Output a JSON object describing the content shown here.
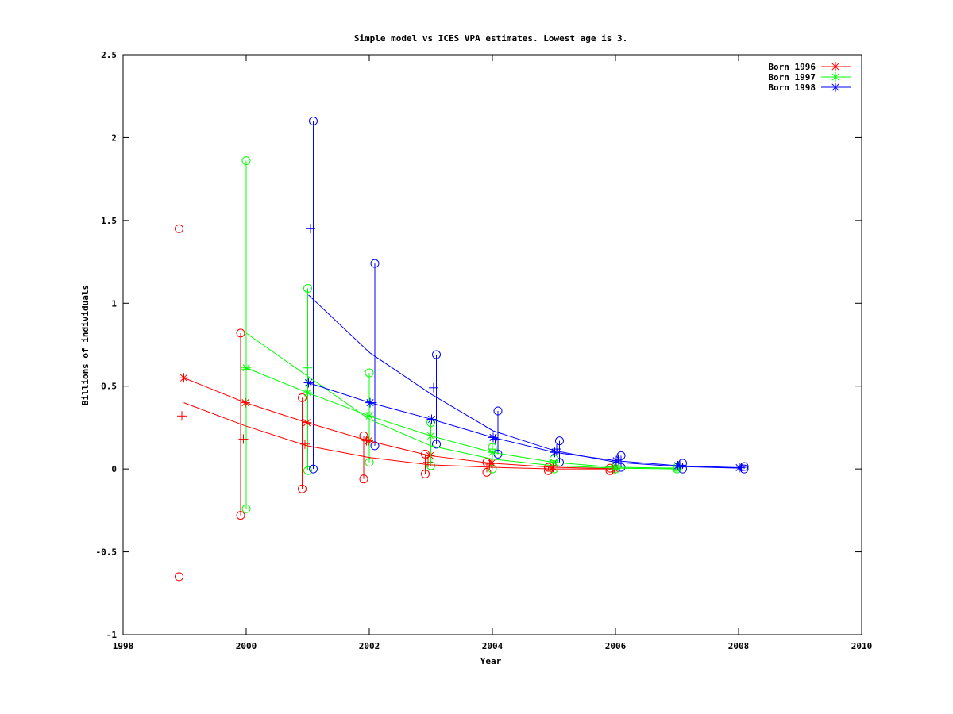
{
  "chart_data": {
    "type": "line",
    "title": "Simple model vs ICES VPA estimates. Lowest age is 3.",
    "xlabel": "Year",
    "ylabel": "Billions of individuals",
    "xlim": [
      1998,
      2010
    ],
    "ylim": [
      -1,
      2.5
    ],
    "xticks": [
      "1998",
      "2000",
      "2002",
      "2004",
      "2006",
      "2008",
      "2010"
    ],
    "yticks": [
      "-1",
      "-0.5",
      "0",
      "0.5",
      "1",
      "1.5",
      "2",
      "2.5"
    ],
    "grid": false,
    "legend_position": "top-right",
    "series": [
      {
        "name": "Born 1996",
        "color": "#ff0000",
        "vpa": [
          {
            "x": 1999,
            "y": 0.55
          },
          {
            "x": 2000,
            "y": 0.4
          },
          {
            "x": 2001,
            "y": 0.28
          },
          {
            "x": 2002,
            "y": 0.17
          },
          {
            "x": 2003,
            "y": 0.08
          },
          {
            "x": 2004,
            "y": 0.035
          },
          {
            "x": 2005,
            "y": 0.01
          },
          {
            "x": 2006,
            "y": 0.002
          }
        ],
        "model": [
          {
            "x": 1999,
            "y": 0.4
          },
          {
            "x": 2000,
            "y": 0.26
          },
          {
            "x": 2001,
            "y": 0.14
          },
          {
            "x": 2002,
            "y": 0.07
          },
          {
            "x": 2003,
            "y": 0.025
          },
          {
            "x": 2004,
            "y": 0.01
          },
          {
            "x": 2005,
            "y": 0.0
          },
          {
            "x": 2006,
            "y": 0.0
          }
        ],
        "estimates": [
          {
            "x": 1999,
            "y": 0.32
          },
          {
            "x": 2000,
            "y": 0.18
          },
          {
            "x": 2001,
            "y": 0.15
          },
          {
            "x": 2002,
            "y": 0.17
          },
          {
            "x": 2003,
            "y": 0.04
          },
          {
            "x": 2004,
            "y": 0.03
          },
          {
            "x": 2005,
            "y": 0.0
          },
          {
            "x": 2006,
            "y": 0.0
          }
        ],
        "ranges": [
          {
            "x": 1999,
            "lo": -0.65,
            "hi": 1.45
          },
          {
            "x": 2000,
            "lo": -0.28,
            "hi": 0.82
          },
          {
            "x": 2001,
            "lo": -0.12,
            "hi": 0.43
          },
          {
            "x": 2002,
            "lo": -0.06,
            "hi": 0.2
          },
          {
            "x": 2003,
            "lo": -0.03,
            "hi": 0.09
          },
          {
            "x": 2004,
            "lo": -0.02,
            "hi": 0.04
          },
          {
            "x": 2005,
            "lo": -0.01,
            "hi": 0.01
          },
          {
            "x": 2006,
            "lo": -0.01,
            "hi": 0.005
          }
        ]
      },
      {
        "name": "Born 1997",
        "color": "#00ff00",
        "vpa": [
          {
            "x": 2000,
            "y": 0.61
          },
          {
            "x": 2001,
            "y": 0.46
          },
          {
            "x": 2002,
            "y": 0.32
          },
          {
            "x": 2003,
            "y": 0.2
          },
          {
            "x": 2004,
            "y": 0.1
          },
          {
            "x": 2005,
            "y": 0.04
          },
          {
            "x": 2006,
            "y": 0.01
          },
          {
            "x": 2007,
            "y": 0.005
          }
        ],
        "model": [
          {
            "x": 2000,
            "y": 0.82
          },
          {
            "x": 2001,
            "y": 0.56
          },
          {
            "x": 2002,
            "y": 0.3
          },
          {
            "x": 2003,
            "y": 0.14
          },
          {
            "x": 2004,
            "y": 0.06
          },
          {
            "x": 2005,
            "y": 0.02
          },
          {
            "x": 2006,
            "y": 0.005
          },
          {
            "x": 2007,
            "y": 0.0
          }
        ],
        "estimates": [
          {
            "x": 2000,
            "y": 0.6
          },
          {
            "x": 2001,
            "y": 0.61
          },
          {
            "x": 2002,
            "y": 0.34
          },
          {
            "x": 2003,
            "y": 0.06
          },
          {
            "x": 2004,
            "y": 0.12
          },
          {
            "x": 2005,
            "y": 0.05
          },
          {
            "x": 2006,
            "y": 0.0
          },
          {
            "x": 2007,
            "y": 0.0
          }
        ],
        "ranges": [
          {
            "x": 2000,
            "lo": -0.24,
            "hi": 1.86
          },
          {
            "x": 2001,
            "lo": -0.01,
            "hi": 1.09
          },
          {
            "x": 2002,
            "lo": 0.04,
            "hi": 0.58
          },
          {
            "x": 2003,
            "lo": 0.02,
            "hi": 0.28
          },
          {
            "x": 2004,
            "lo": 0.0,
            "hi": 0.13
          },
          {
            "x": 2005,
            "lo": 0.0,
            "hi": 0.06
          },
          {
            "x": 2006,
            "lo": 0.0,
            "hi": 0.02
          },
          {
            "x": 2007,
            "lo": 0.0,
            "hi": 0.01
          }
        ]
      },
      {
        "name": "Born 1998",
        "color": "#0000ff",
        "vpa": [
          {
            "x": 2001,
            "y": 0.52
          },
          {
            "x": 2002,
            "y": 0.4
          },
          {
            "x": 2003,
            "y": 0.3
          },
          {
            "x": 2004,
            "y": 0.19
          },
          {
            "x": 2005,
            "y": 0.1
          },
          {
            "x": 2006,
            "y": 0.05
          },
          {
            "x": 2007,
            "y": 0.02
          },
          {
            "x": 2008,
            "y": 0.008
          }
        ],
        "model": [
          {
            "x": 2001,
            "y": 1.05
          },
          {
            "x": 2002,
            "y": 0.7
          },
          {
            "x": 2003,
            "y": 0.45
          },
          {
            "x": 2004,
            "y": 0.23
          },
          {
            "x": 2005,
            "y": 0.11
          },
          {
            "x": 2006,
            "y": 0.04
          },
          {
            "x": 2007,
            "y": 0.015
          },
          {
            "x": 2008,
            "y": 0.005
          }
        ],
        "estimates": [
          {
            "x": 2001,
            "y": 1.45
          },
          {
            "x": 2002,
            "y": 0.4
          },
          {
            "x": 2003,
            "y": 0.49
          },
          {
            "x": 2004,
            "y": 0.18
          },
          {
            "x": 2005,
            "y": 0.12
          },
          {
            "x": 2006,
            "y": 0.06
          },
          {
            "x": 2007,
            "y": 0.02
          },
          {
            "x": 2008,
            "y": 0.01
          }
        ],
        "ranges": [
          {
            "x": 2001,
            "lo": 0.0,
            "hi": 2.1
          },
          {
            "x": 2002,
            "lo": 0.14,
            "hi": 1.24
          },
          {
            "x": 2003,
            "lo": 0.15,
            "hi": 0.69
          },
          {
            "x": 2004,
            "lo": 0.09,
            "hi": 0.35
          },
          {
            "x": 2005,
            "lo": 0.04,
            "hi": 0.17
          },
          {
            "x": 2006,
            "lo": 0.01,
            "hi": 0.08
          },
          {
            "x": 2007,
            "lo": 0.0,
            "hi": 0.035
          },
          {
            "x": 2008,
            "lo": 0.0,
            "hi": 0.015
          }
        ]
      }
    ]
  }
}
